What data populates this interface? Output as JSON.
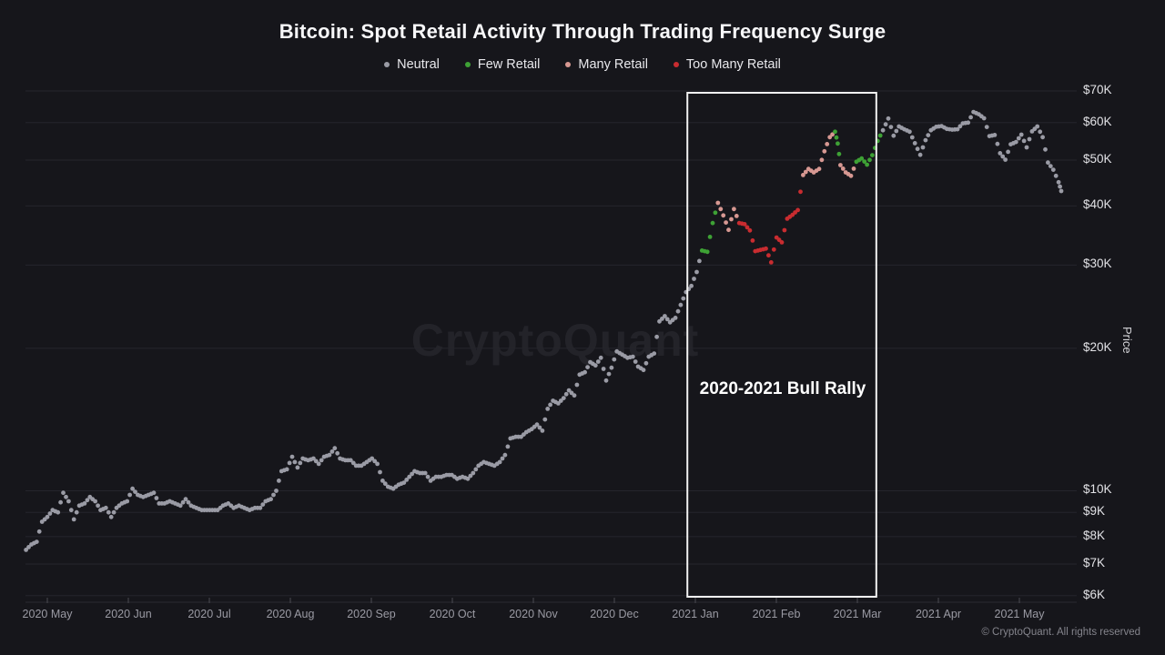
{
  "title": "Bitcoin: Spot Retail Activity Through Trading Frequency Surge",
  "watermark": "CryptoQuant",
  "copyright": "© CryptoQuant. All rights reserved",
  "annotation": {
    "label": "2020-2021 Bull Rally"
  },
  "legend": [
    {
      "label": "Neutral",
      "color": "#9a9ba5"
    },
    {
      "label": "Few Retail",
      "color": "#3ea135"
    },
    {
      "label": "Many Retail",
      "color": "#d79892"
    },
    {
      "label": "Too Many Retail",
      "color": "#c92c30"
    }
  ],
  "chart_data": {
    "type": "scatter",
    "title": "Bitcoin: Spot Retail Activity Through Trading Frequency Surge",
    "xlabel": "",
    "ylabel": "Price",
    "y_scale": "log",
    "y_axis": {
      "label": "Price",
      "ticks": [
        {
          "label": "$70K",
          "value": 70
        },
        {
          "label": "$60K",
          "value": 60
        },
        {
          "label": "$50K",
          "value": 50
        },
        {
          "label": "$40K",
          "value": 40
        },
        {
          "label": "$30K",
          "value": 30
        },
        {
          "label": "$20K",
          "value": 20
        },
        {
          "label": "$10K",
          "value": 10
        },
        {
          "label": "$9K",
          "value": 9
        },
        {
          "label": "$8K",
          "value": 8
        },
        {
          "label": "$7K",
          "value": 7
        },
        {
          "label": "$6K",
          "value": 6
        }
      ]
    },
    "x_axis": {
      "x_unit": "days since 2020-05-01",
      "ticks": [
        "2020 May",
        "2020 Jun",
        "2020 Jul",
        "2020 Aug",
        "2020 Sep",
        "2020 Oct",
        "2020 Nov",
        "2020 Dec",
        "2021 Jan",
        "2021 Feb",
        "2021 Mar",
        "2021 Apr",
        "2021 May"
      ]
    },
    "categories": [
      {
        "name": "Neutral",
        "color": "#9a9ba5"
      },
      {
        "name": "Few Retail",
        "color": "#3ea135"
      },
      {
        "name": "Many Retail",
        "color": "#d79892"
      },
      {
        "name": "Too Many Retail",
        "color": "#c92c30"
      }
    ],
    "highlight_region": {
      "label": "2020-2021 Bull Rally",
      "x_day_start": 240.5,
      "x_day_end": 311.5,
      "border_color": "#f2f2f2"
    },
    "points": [
      [
        -8,
        7.5,
        0
      ],
      [
        -6,
        7.7,
        0
      ],
      [
        -4,
        7.8,
        0
      ],
      [
        -2,
        8.6,
        0
      ],
      [
        0,
        8.8,
        0
      ],
      [
        2,
        9.1,
        0
      ],
      [
        4,
        9.0,
        0
      ],
      [
        6,
        9.9,
        0
      ],
      [
        8,
        9.5,
        0
      ],
      [
        10,
        8.7,
        0
      ],
      [
        12,
        9.3,
        0
      ],
      [
        14,
        9.4,
        0
      ],
      [
        16,
        9.7,
        0
      ],
      [
        18,
        9.5,
        0
      ],
      [
        20,
        9.1,
        0
      ],
      [
        22,
        9.2,
        0
      ],
      [
        24,
        8.8,
        0
      ],
      [
        26,
        9.2,
        0
      ],
      [
        28,
        9.4,
        0
      ],
      [
        30,
        9.5,
        0
      ],
      [
        32,
        10.1,
        0
      ],
      [
        34,
        9.8,
        0
      ],
      [
        36,
        9.7,
        0
      ],
      [
        38,
        9.8,
        0
      ],
      [
        40,
        9.9,
        0
      ],
      [
        42,
        9.4,
        0
      ],
      [
        44,
        9.4,
        0
      ],
      [
        46,
        9.5,
        0
      ],
      [
        48,
        9.4,
        0
      ],
      [
        50,
        9.3,
        0
      ],
      [
        52,
        9.6,
        0
      ],
      [
        54,
        9.3,
        0
      ],
      [
        56,
        9.2,
        0
      ],
      [
        58,
        9.1,
        0
      ],
      [
        60,
        9.1,
        0
      ],
      [
        62,
        9.1,
        0
      ],
      [
        64,
        9.1,
        0
      ],
      [
        66,
        9.3,
        0
      ],
      [
        68,
        9.4,
        0
      ],
      [
        70,
        9.2,
        0
      ],
      [
        72,
        9.3,
        0
      ],
      [
        74,
        9.2,
        0
      ],
      [
        76,
        9.1,
        0
      ],
      [
        78,
        9.2,
        0
      ],
      [
        80,
        9.2,
        0
      ],
      [
        82,
        9.5,
        0
      ],
      [
        84,
        9.6,
        0
      ],
      [
        86,
        10.0,
        0
      ],
      [
        88,
        11.0,
        0
      ],
      [
        90,
        11.1,
        0
      ],
      [
        92,
        11.8,
        0
      ],
      [
        94,
        11.2,
        0
      ],
      [
        96,
        11.7,
        0
      ],
      [
        98,
        11.6,
        0
      ],
      [
        100,
        11.7,
        0
      ],
      [
        102,
        11.4,
        0
      ],
      [
        104,
        11.8,
        0
      ],
      [
        106,
        11.9,
        0
      ],
      [
        108,
        12.3,
        0
      ],
      [
        110,
        11.7,
        0
      ],
      [
        112,
        11.6,
        0
      ],
      [
        114,
        11.6,
        0
      ],
      [
        116,
        11.3,
        0
      ],
      [
        118,
        11.3,
        0
      ],
      [
        120,
        11.5,
        0
      ],
      [
        122,
        11.7,
        0
      ],
      [
        124,
        11.4,
        0
      ],
      [
        126,
        10.5,
        0
      ],
      [
        128,
        10.2,
        0
      ],
      [
        130,
        10.1,
        0
      ],
      [
        132,
        10.3,
        0
      ],
      [
        134,
        10.4,
        0
      ],
      [
        136,
        10.7,
        0
      ],
      [
        138,
        11.0,
        0
      ],
      [
        140,
        10.9,
        0
      ],
      [
        142,
        10.9,
        0
      ],
      [
        144,
        10.5,
        0
      ],
      [
        146,
        10.7,
        0
      ],
      [
        148,
        10.7,
        0
      ],
      [
        150,
        10.8,
        0
      ],
      [
        152,
        10.8,
        0
      ],
      [
        154,
        10.6,
        0
      ],
      [
        156,
        10.7,
        0
      ],
      [
        158,
        10.6,
        0
      ],
      [
        160,
        10.9,
        0
      ],
      [
        162,
        11.3,
        0
      ],
      [
        164,
        11.5,
        0
      ],
      [
        166,
        11.4,
        0
      ],
      [
        168,
        11.3,
        0
      ],
      [
        170,
        11.5,
        0
      ],
      [
        172,
        11.9,
        0
      ],
      [
        174,
        12.9,
        0
      ],
      [
        176,
        13.0,
        0
      ],
      [
        178,
        13.0,
        0
      ],
      [
        180,
        13.3,
        0
      ],
      [
        182,
        13.5,
        0
      ],
      [
        184,
        13.8,
        0
      ],
      [
        186,
        13.4,
        0
      ],
      [
        188,
        14.9,
        0
      ],
      [
        190,
        15.5,
        0
      ],
      [
        192,
        15.3,
        0
      ],
      [
        194,
        15.7,
        0
      ],
      [
        196,
        16.3,
        0
      ],
      [
        198,
        15.9,
        0
      ],
      [
        200,
        17.6,
        0
      ],
      [
        202,
        17.8,
        0
      ],
      [
        204,
        18.7,
        0
      ],
      [
        206,
        18.4,
        0
      ],
      [
        208,
        19.1,
        0
      ],
      [
        210,
        17.1,
        0
      ],
      [
        212,
        18.2,
        0
      ],
      [
        214,
        19.7,
        0
      ],
      [
        216,
        19.4,
        0
      ],
      [
        218,
        19.1,
        0
      ],
      [
        220,
        19.2,
        0
      ],
      [
        222,
        18.3,
        0
      ],
      [
        224,
        18.0,
        0
      ],
      [
        226,
        19.2,
        0
      ],
      [
        228,
        19.5,
        0
      ],
      [
        230,
        22.8,
        0
      ],
      [
        232,
        23.4,
        0
      ],
      [
        234,
        22.7,
        0
      ],
      [
        236,
        23.2,
        0
      ],
      [
        238,
        24.7,
        0
      ],
      [
        240,
        26.3,
        0
      ],
      [
        242,
        27.1,
        0
      ],
      [
        244,
        29.0,
        0
      ],
      [
        246,
        32.2,
        1
      ],
      [
        248,
        32.0,
        1
      ],
      [
        250,
        36.8,
        1
      ],
      [
        252,
        40.6,
        2
      ],
      [
        254,
        38.2,
        2
      ],
      [
        256,
        35.6,
        2
      ],
      [
        258,
        39.4,
        2
      ],
      [
        260,
        36.8,
        3
      ],
      [
        262,
        36.6,
        3
      ],
      [
        264,
        35.5,
        3
      ],
      [
        266,
        32.1,
        3
      ],
      [
        268,
        32.3,
        3
      ],
      [
        270,
        32.5,
        3
      ],
      [
        272,
        30.4,
        3
      ],
      [
        274,
        34.3,
        3
      ],
      [
        276,
        33.5,
        3
      ],
      [
        278,
        37.6,
        3
      ],
      [
        280,
        38.3,
        3
      ],
      [
        282,
        39.2,
        3
      ],
      [
        284,
        46.5,
        2
      ],
      [
        286,
        47.9,
        2
      ],
      [
        288,
        47.1,
        2
      ],
      [
        290,
        47.9,
        2
      ],
      [
        292,
        52.2,
        2
      ],
      [
        294,
        55.9,
        2
      ],
      [
        296,
        57.4,
        1
      ],
      [
        297,
        54.2,
        1
      ],
      [
        298,
        48.8,
        2
      ],
      [
        300,
        47.1,
        2
      ],
      [
        302,
        46.3,
        2
      ],
      [
        304,
        49.6,
        1
      ],
      [
        306,
        50.4,
        1
      ],
      [
        308,
        48.9,
        1
      ],
      [
        310,
        51.2,
        1
      ],
      [
        312,
        54.9,
        1
      ],
      [
        314,
        57.8,
        0
      ],
      [
        316,
        61.2,
        0
      ],
      [
        318,
        56.3,
        0
      ],
      [
        320,
        58.9,
        0
      ],
      [
        322,
        58.1,
        0
      ],
      [
        324,
        57.4,
        0
      ],
      [
        326,
        54.3,
        0
      ],
      [
        328,
        51.3,
        0
      ],
      [
        330,
        55.1,
        0
      ],
      [
        332,
        57.8,
        0
      ],
      [
        334,
        58.8,
        0
      ],
      [
        336,
        59.0,
        0
      ],
      [
        338,
        58.2,
        0
      ],
      [
        340,
        58.0,
        0
      ],
      [
        342,
        58.1,
        0
      ],
      [
        344,
        59.8,
        0
      ],
      [
        346,
        60.0,
        0
      ],
      [
        348,
        63.2,
        0
      ],
      [
        350,
        62.5,
        0
      ],
      [
        352,
        61.3,
        0
      ],
      [
        354,
        56.2,
        0
      ],
      [
        356,
        56.5,
        0
      ],
      [
        358,
        51.7,
        0
      ],
      [
        360,
        50.1,
        0
      ],
      [
        362,
        54.0,
        0
      ],
      [
        364,
        54.6,
        0
      ],
      [
        366,
        56.6,
        0
      ],
      [
        368,
        53.2,
        0
      ],
      [
        370,
        57.5,
        0
      ],
      [
        372,
        58.9,
        0
      ],
      [
        374,
        55.9,
        0
      ],
      [
        376,
        49.4,
        0
      ],
      [
        378,
        47.7,
        0
      ],
      [
        380,
        44.9,
        0
      ],
      [
        381,
        43.0,
        0
      ]
    ]
  }
}
